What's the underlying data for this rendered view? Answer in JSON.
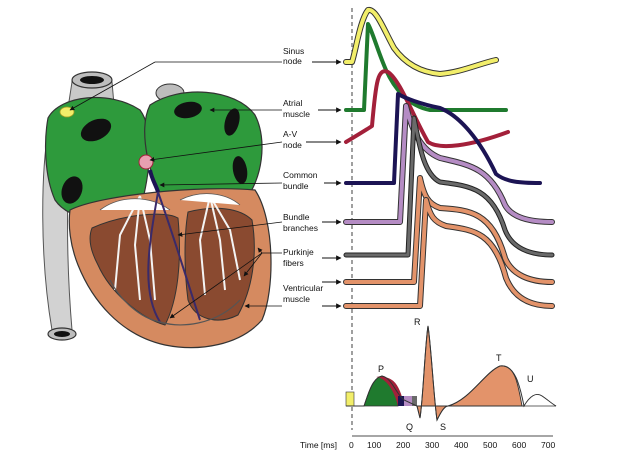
{
  "structures": [
    {
      "line1": "Sinus",
      "line2": "node"
    },
    {
      "line1": "Atrial",
      "line2": "muscle"
    },
    {
      "line1": "A-V",
      "line2": "node"
    },
    {
      "line1": "Common",
      "line2": "bundle"
    },
    {
      "line1": "Bundle",
      "line2": "branches"
    },
    {
      "line1": "Purkinje",
      "line2": "fibers"
    },
    {
      "line1": "Ventricular",
      "line2": "muscle"
    }
  ],
  "ecg_waves": {
    "p": "P",
    "q": "Q",
    "r": "R",
    "s": "S",
    "t": "T",
    "u": "U"
  },
  "time_axis": {
    "label": "Time [ms]",
    "ticks": [
      "0",
      "100",
      "200",
      "300",
      "400",
      "500",
      "600",
      "700"
    ]
  },
  "colors": {
    "sinus": "#f2ee6a",
    "atrial": "#1f7a2e",
    "av": "#a3203a",
    "common": "#1c1454",
    "branches": "#b58cc4",
    "purkinje": "#6a6a6a",
    "ventricular": "#e3936a",
    "atria_fill": "#2e9a3c",
    "ventricle_fill": "#d58a60"
  }
}
